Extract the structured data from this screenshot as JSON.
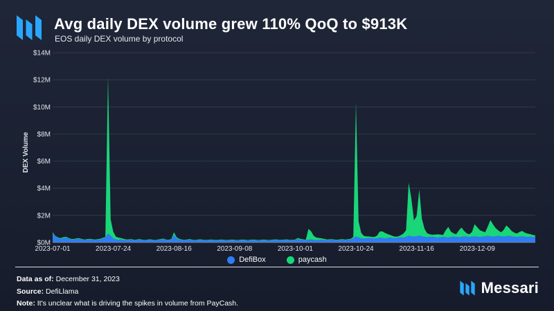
{
  "header": {
    "title": "Avg daily DEX volume grew 110% QoQ to $913K",
    "subtitle": "EOS daily DEX volume by protocol"
  },
  "colors": {
    "defibox": "#2f7cf6",
    "paycash": "#19d679",
    "accent": "#2aa6ff"
  },
  "chart_data": {
    "type": "area",
    "stacked": true,
    "title": "Avg daily DEX volume grew 110% QoQ to $913K",
    "subtitle": "EOS daily DEX volume by protocol",
    "xlabel": "",
    "ylabel": "DEX Volume",
    "ylim": [
      0,
      14000000
    ],
    "yticks": [
      0,
      2000000,
      4000000,
      6000000,
      8000000,
      10000000,
      12000000,
      14000000
    ],
    "ytick_labels": [
      "$0M",
      "$2M",
      "$4M",
      "$6M",
      "$8M",
      "$10M",
      "$12M",
      "$14M"
    ],
    "xticks": [
      "2023-07-01",
      "2023-07-24",
      "2023-08-16",
      "2023-09-08",
      "2023-10-01",
      "2023-10-24",
      "2023-11-16",
      "2023-12-09"
    ],
    "xtick_index": [
      0,
      23,
      46,
      69,
      92,
      115,
      138,
      161
    ],
    "n_days": 184,
    "legend": [
      "DefiBox",
      "paycash"
    ],
    "legend_position": "bottom",
    "grid": true,
    "series": [
      {
        "name": "DefiBox",
        "values": [
          650000,
          420000,
          320000,
          250000,
          300000,
          360000,
          280000,
          220000,
          200000,
          240000,
          260000,
          220000,
          180000,
          200000,
          220000,
          200000,
          180000,
          200000,
          220000,
          280000,
          350000,
          650000,
          500000,
          280000,
          220000,
          200000,
          220000,
          180000,
          160000,
          180000,
          200000,
          160000,
          180000,
          200000,
          160000,
          150000,
          170000,
          180000,
          160000,
          150000,
          180000,
          200000,
          250000,
          180000,
          160000,
          200000,
          550000,
          280000,
          200000,
          180000,
          160000,
          180000,
          200000,
          160000,
          150000,
          170000,
          180000,
          160000,
          150000,
          160000,
          170000,
          160000,
          150000,
          160000,
          170000,
          150000,
          140000,
          150000,
          160000,
          150000,
          140000,
          150000,
          160000,
          150000,
          140000,
          150000,
          160000,
          150000,
          140000,
          150000,
          160000,
          150000,
          140000,
          160000,
          170000,
          180000,
          160000,
          150000,
          170000,
          180000,
          160000,
          150000,
          170000,
          250000,
          200000,
          180000,
          160000,
          200000,
          220000,
          180000,
          160000,
          180000,
          200000,
          180000,
          160000,
          180000,
          200000,
          180000,
          160000,
          180000,
          200000,
          180000,
          200000,
          220000,
          300000,
          450000,
          350000,
          300000,
          280000,
          300000,
          320000,
          300000,
          280000,
          300000,
          350000,
          320000,
          300000,
          320000,
          350000,
          320000,
          300000,
          350000,
          380000,
          350000,
          400000,
          500000,
          450000,
          420000,
          450000,
          500000,
          450000,
          400000,
          380000,
          400000,
          420000,
          380000,
          350000,
          380000,
          400000,
          380000,
          350000,
          400000,
          420000,
          400000,
          380000,
          400000,
          450000,
          420000,
          400000,
          420000,
          450000,
          420000,
          400000,
          420000,
          450000,
          480000,
          450000,
          420000,
          450000,
          480000,
          450000,
          420000,
          450000,
          480000,
          450000,
          420000,
          400000,
          420000,
          450000,
          420000,
          400000,
          420000,
          400000,
          420000
        ],
        "color": "#2f7cf6"
      },
      {
        "name": "paycash",
        "values": [
          100000,
          60000,
          50000,
          60000,
          80000,
          60000,
          50000,
          40000,
          50000,
          60000,
          50000,
          40000,
          30000,
          40000,
          50000,
          40000,
          30000,
          40000,
          50000,
          60000,
          50000,
          11600000,
          1200000,
          500000,
          200000,
          150000,
          100000,
          80000,
          60000,
          50000,
          40000,
          30000,
          40000,
          50000,
          40000,
          30000,
          40000,
          50000,
          40000,
          30000,
          40000,
          50000,
          40000,
          30000,
          40000,
          50000,
          200000,
          100000,
          60000,
          40000,
          30000,
          40000,
          50000,
          40000,
          30000,
          40000,
          50000,
          40000,
          30000,
          40000,
          50000,
          40000,
          30000,
          40000,
          50000,
          40000,
          30000,
          40000,
          50000,
          40000,
          30000,
          40000,
          50000,
          40000,
          30000,
          40000,
          50000,
          40000,
          30000,
          40000,
          50000,
          40000,
          30000,
          40000,
          50000,
          40000,
          30000,
          40000,
          50000,
          40000,
          30000,
          40000,
          50000,
          80000,
          60000,
          50000,
          40000,
          800000,
          600000,
          300000,
          200000,
          150000,
          100000,
          80000,
          60000,
          50000,
          40000,
          30000,
          40000,
          50000,
          40000,
          30000,
          40000,
          50000,
          100000,
          9900000,
          1200000,
          400000,
          200000,
          150000,
          120000,
          100000,
          120000,
          200000,
          450000,
          500000,
          400000,
          300000,
          200000,
          150000,
          120000,
          100000,
          150000,
          300000,
          500000,
          3900000,
          2800000,
          1200000,
          1500000,
          3400000,
          1300000,
          600000,
          300000,
          200000,
          150000,
          200000,
          250000,
          200000,
          150000,
          500000,
          800000,
          400000,
          250000,
          200000,
          500000,
          700000,
          400000,
          250000,
          200000,
          350000,
          900000,
          700000,
          500000,
          400000,
          300000,
          700000,
          1200000,
          900000,
          600000,
          400000,
          300000,
          500000,
          800000,
          600000,
          400000,
          300000,
          250000,
          350000,
          400000,
          300000,
          250000,
          200000,
          150000,
          100000
        ],
        "color": "#19d679"
      }
    ]
  },
  "footer": {
    "data_as_of_label": "Data as of:",
    "data_as_of_value": "December 31, 2023",
    "source_label": "Source:",
    "source_value": "DefiLlama",
    "note_label": "Note:",
    "note_value": "It's unclear what is driving the spikes in volume from PayCash.",
    "brand": "Messari"
  }
}
